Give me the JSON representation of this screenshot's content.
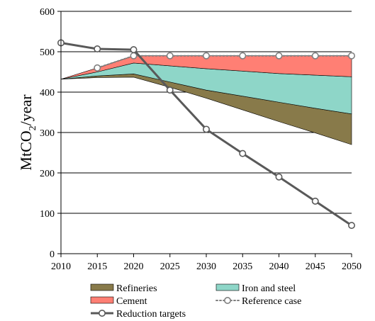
{
  "chart_data": {
    "type": "area",
    "x": [
      2010,
      2015,
      2020,
      2025,
      2030,
      2035,
      2040,
      2045,
      2050
    ],
    "xlim": [
      2010,
      2050
    ],
    "ylim": [
      0,
      600
    ],
    "yticks": [
      0,
      100,
      200,
      300,
      400,
      500,
      600
    ],
    "ylabel": {
      "main": "MtCO",
      "sub": "2",
      "tail": "/year"
    },
    "grid": true,
    "legend_position": "bottom",
    "stacked_series": [
      {
        "name": "Refineries",
        "color": "#887a4a",
        "lower": [
          432,
          436,
          437,
          412,
          385,
          356,
          327,
          299,
          270
        ],
        "upper": [
          432,
          440,
          445,
          425,
          405,
          390,
          375,
          360,
          346
        ]
      },
      {
        "name": "Iron and steel",
        "color": "#8ed6c8",
        "lower": [
          432,
          440,
          445,
          425,
          405,
          390,
          375,
          360,
          346
        ],
        "upper": [
          432,
          450,
          472,
          465,
          458,
          452,
          446,
          442,
          438
        ]
      },
      {
        "name": "Cement",
        "color": "#ff7f74",
        "lower": [
          432,
          450,
          472,
          465,
          458,
          452,
          446,
          442,
          438
        ],
        "upper": [
          432,
          460,
          490,
          490,
          490,
          490,
          490,
          490,
          490
        ]
      }
    ],
    "line_series": [
      {
        "name": "Reference case",
        "color": "#7f7f7f",
        "style": "dotted",
        "marker": "circle",
        "x": [
          2015,
          2020,
          2025,
          2030,
          2035,
          2040,
          2045,
          2050
        ],
        "values": [
          460,
          490,
          490,
          490,
          490,
          490,
          490,
          490
        ]
      },
      {
        "name": "Reduction targets",
        "color": "#595959",
        "style": "solid",
        "marker": "circle",
        "x": [
          2010,
          2015,
          2020,
          2025,
          2030,
          2035,
          2040,
          2045,
          2050
        ],
        "values": [
          522,
          507,
          505,
          405,
          308,
          248,
          190,
          130,
          70
        ]
      }
    ],
    "legend": [
      {
        "label": "Refineries",
        "kind": "swatch",
        "color": "#887a4a"
      },
      {
        "label": "Iron and steel",
        "kind": "swatch",
        "color": "#8ed6c8"
      },
      {
        "label": "Cement",
        "kind": "swatch",
        "color": "#ff7f74"
      },
      {
        "label": "Reference case",
        "kind": "dotted-line",
        "color": "#7f7f7f"
      },
      {
        "label": "Reduction targets",
        "kind": "solid-line",
        "color": "#595959"
      }
    ]
  }
}
